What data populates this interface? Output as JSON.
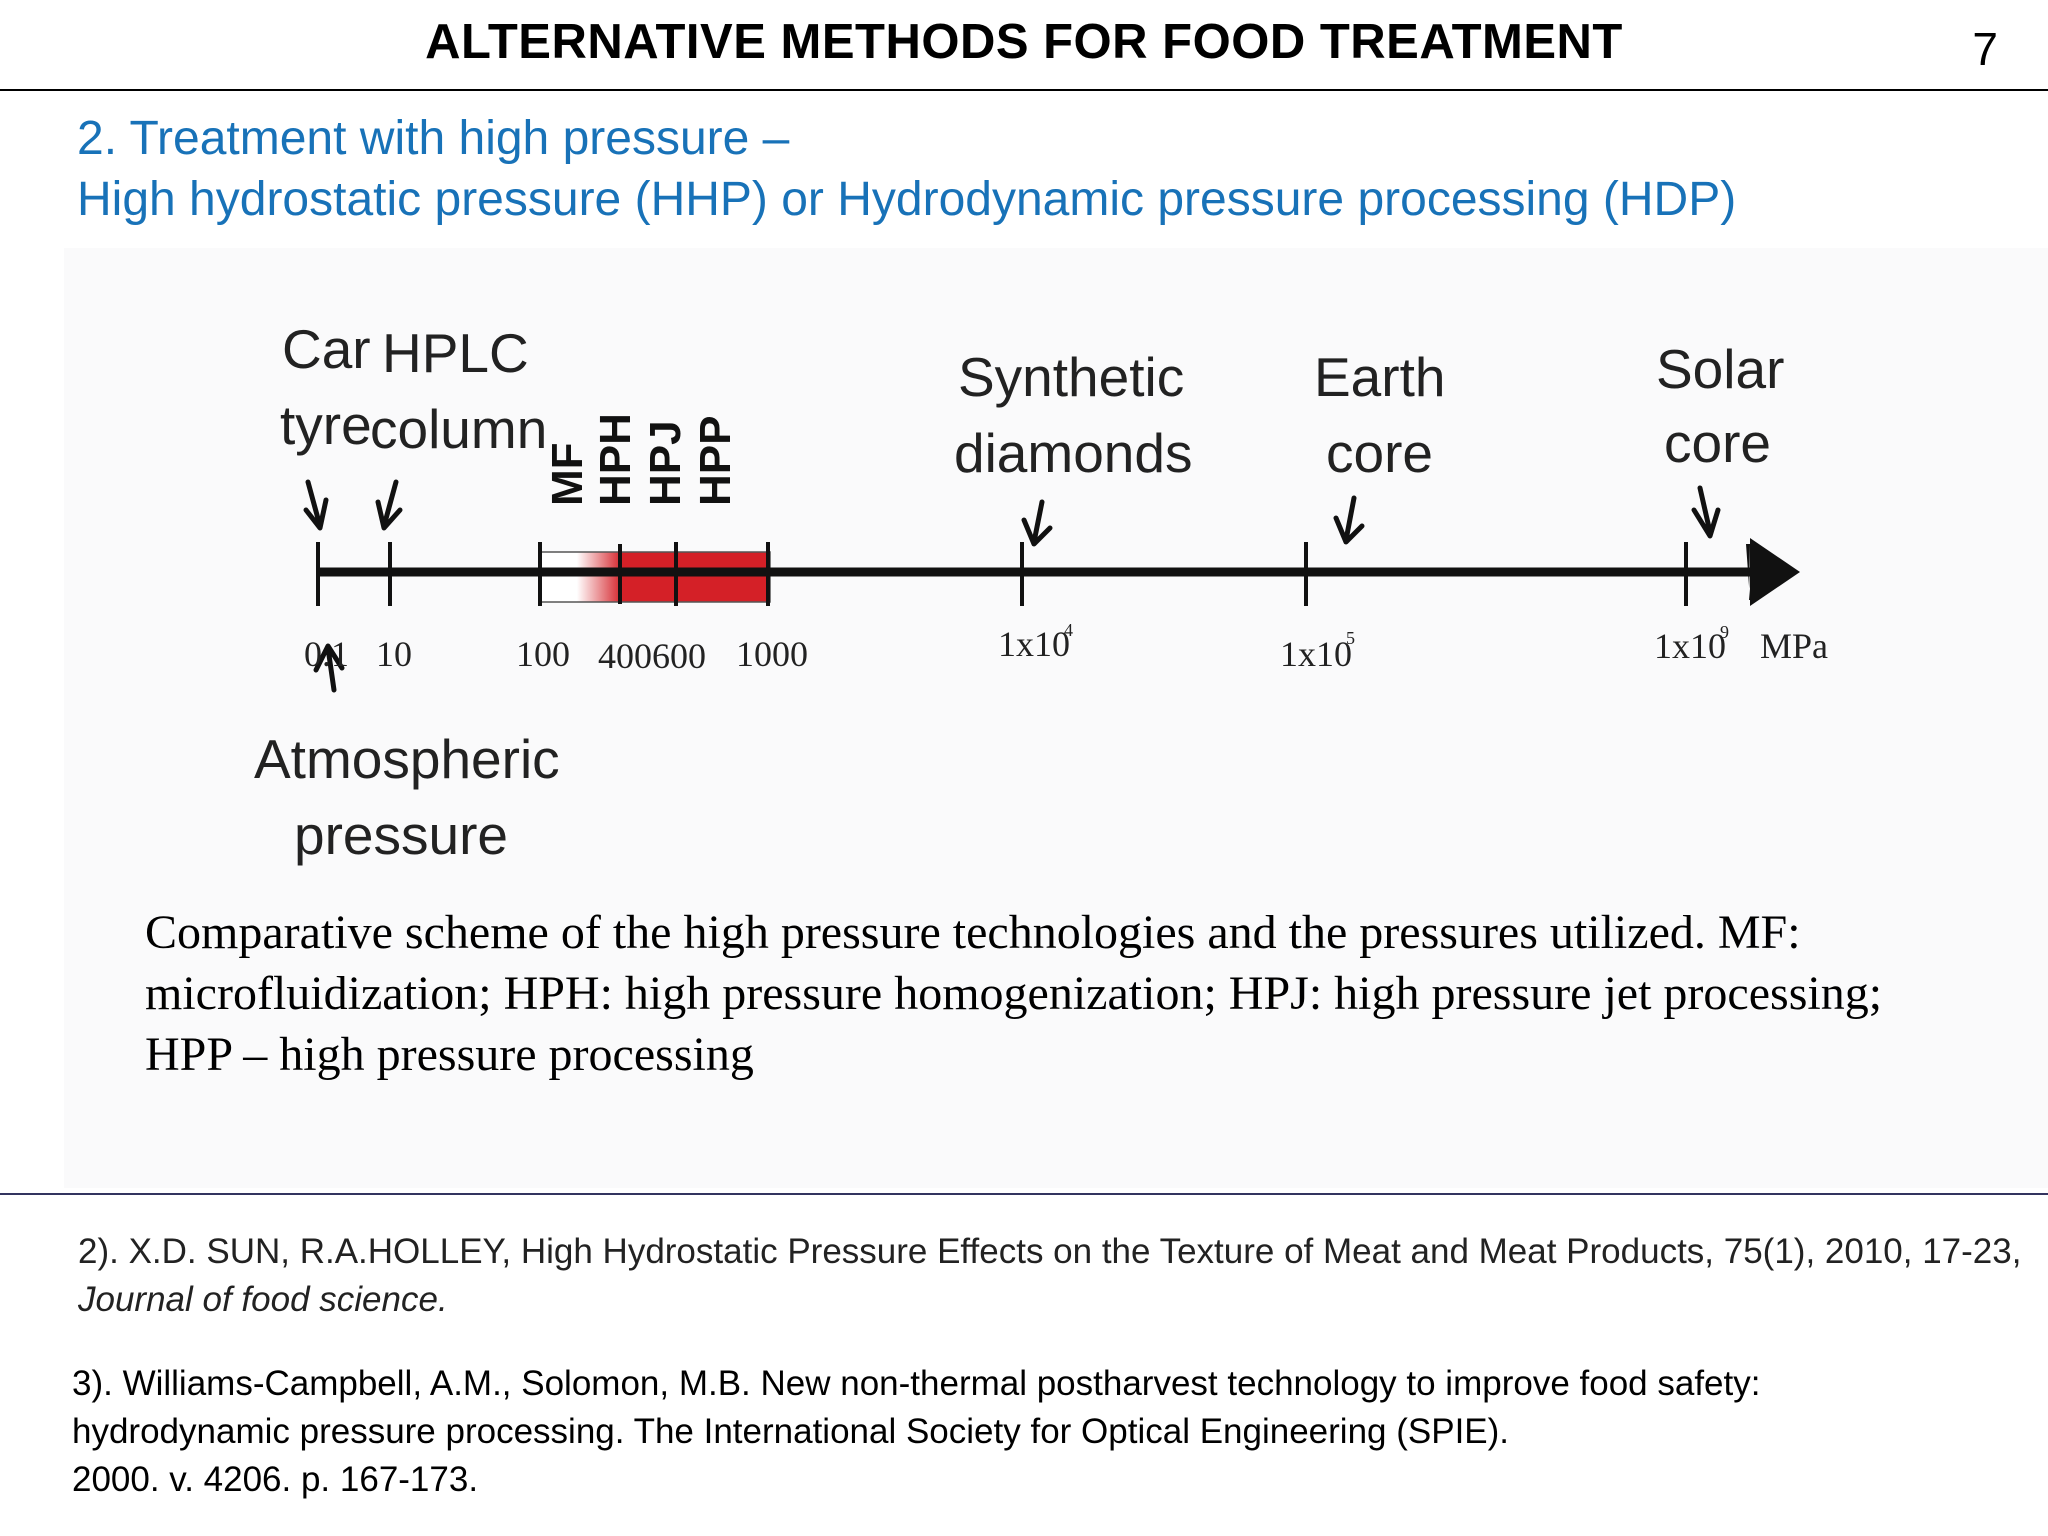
{
  "slide": {
    "title": "ALTERNATIVE METHODS FOR FOOD TREATMENT",
    "number": "7",
    "subtitle_line1": "2. Treatment with high pressure –",
    "subtitle_line2": "High hydrostatic pressure (HHP) or Hydrodynamic pressure processing (HDP)"
  },
  "diagram": {
    "labels": {
      "car_tyre": [
        "Car",
        "tyre"
      ],
      "hplc_column": [
        "HPLC",
        "column"
      ],
      "synthetic_diamonds": [
        "Synthetic",
        "diamonds"
      ],
      "earth_core": [
        "Earth",
        "core"
      ],
      "solar_core": [
        "Solar",
        "core"
      ],
      "atmospheric_pressure": [
        "Atmospheric",
        "pressure"
      ]
    },
    "technologies": [
      "MF",
      "HPH",
      "HPJ",
      "HPP"
    ],
    "ticks": {
      "t01": "0.1",
      "t10": "10",
      "t100": "100",
      "t400": "400",
      "t600": "600",
      "t1000": "1000",
      "t1e4_base": "1x10",
      "t1e4_exp": "4",
      "t1e5_base": "1x10",
      "t1e5_exp": "5",
      "t1e9_base": "1x10",
      "t1e9_exp": "9"
    },
    "unit": "MPa",
    "colors": {
      "axis": "#111111",
      "pressure_band": "#d42027",
      "band_fade": "#ffffff"
    }
  },
  "caption": "Comparative scheme of the high pressure technologies and the pressures utilized. MF: microfluidization; HPH: high pressure homogenization; HPJ: high pressure jet processing; HPP – high pressure processing",
  "references": {
    "ref2_main": "2). X.D. SUN, R.A.HOLLEY, High Hydrostatic Pressure Effects on the Texture of Meat and Meat Products, 75(1), 2010, 17-23, ",
    "ref2_journal": "Journal of food science.",
    "ref3_line1": "3). Williams-Campbell, A.M., Solomon, M.B. New non-thermal postharvest technology to improve food safety:",
    "ref3_line2": "hydrodynamic pressure processing. The International Society for Optical Engineering (SPIE).",
    "ref3_line3": "2000. v. 4206. p. 167-173."
  }
}
